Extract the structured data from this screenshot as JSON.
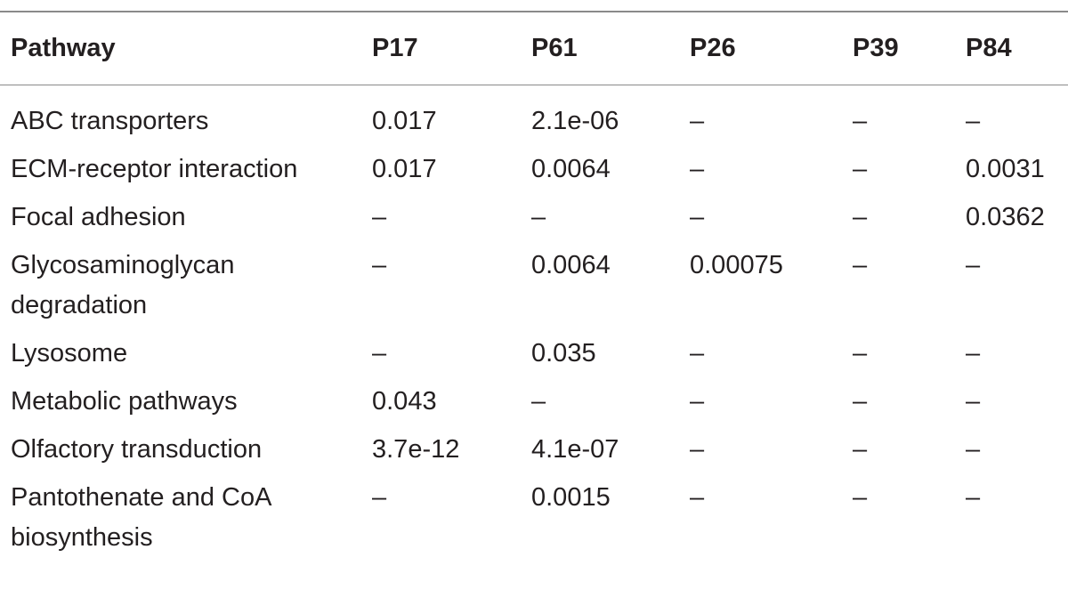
{
  "table": {
    "header": [
      "Pathway",
      "P17",
      "P61",
      "P26",
      "P39",
      "P84"
    ],
    "rows": [
      [
        "ABC transporters",
        "0.017",
        "2.1e-06",
        "–",
        "–",
        "–"
      ],
      [
        "ECM-receptor interaction",
        "0.017",
        "0.0064",
        "–",
        "–",
        "0.0031"
      ],
      [
        "Focal adhesion",
        "–",
        "–",
        "–",
        "–",
        "0.0362"
      ],
      [
        "Glycosaminoglycan degradation",
        "–",
        "0.0064",
        "0.00075",
        "–",
        "–"
      ],
      [
        "Lysosome",
        "–",
        "0.035",
        "–",
        "–",
        "–"
      ],
      [
        "Metabolic pathways",
        "0.043",
        "–",
        "–",
        "–",
        "–"
      ],
      [
        "Olfactory transduction",
        "3.7e-12",
        "4.1e-07",
        "–",
        "–",
        "–"
      ],
      [
        "Pantothenate and CoA biosynthesis",
        "–",
        "0.0015",
        "–",
        "–",
        "–"
      ]
    ]
  }
}
